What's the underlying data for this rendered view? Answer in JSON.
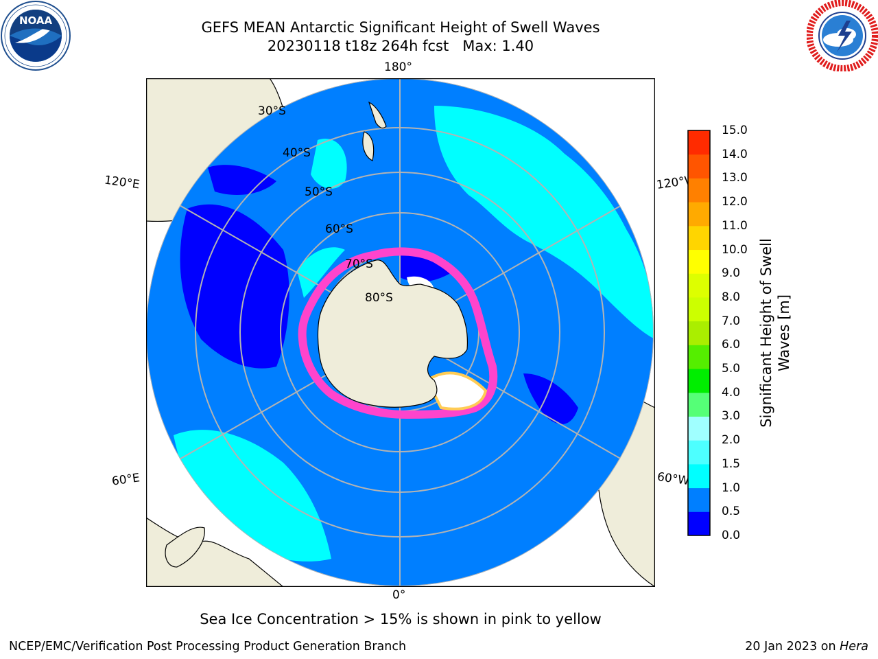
{
  "header": {
    "title_line1": "GEFS MEAN Antarctic Significant Height of Swell Waves",
    "title_line2": "20230118 t18z 264h fcst   Max: 1.40"
  },
  "logos": {
    "left": {
      "icon": "noaa-logo-icon",
      "text": "NOAA",
      "ring_text": "NATIONAL OCEANIC AND ATMOSPHERIC ADMINISTRATION · U.S. DEPARTMENT OF COMMERCE"
    },
    "right": {
      "icon": "nws-logo-icon",
      "ring_text": "NATIONAL WEATHER SERVICE"
    }
  },
  "map": {
    "projection": "south-polar-stereographic",
    "longitude_labels": {
      "top": "180°",
      "bottom": "0°",
      "left_upper": "120°E",
      "left_lower": "60°E",
      "right_upper": "120°W",
      "right_lower": "60°W"
    },
    "latitude_labels": [
      "30°S",
      "40°S",
      "50°S",
      "60°S",
      "70°S",
      "80°S"
    ],
    "colors": {
      "land": "#efedda",
      "ocean_low": "#0000ff",
      "ocean_mid": "#007fff",
      "ocean_high": "#00ffff",
      "gridline": "#b3b3b3",
      "sea_ice": "#ff44cc"
    }
  },
  "colorbar": {
    "title_line1": "Significant Height of Swell",
    "title_line2": "Waves [m]",
    "ticks": [
      "15.0",
      "14.0",
      "13.0",
      "12.0",
      "11.0",
      "10.0",
      "9.0",
      "8.0",
      "7.0",
      "6.0",
      "5.0",
      "4.0",
      "3.0",
      "2.0",
      "1.5",
      "1.0",
      "0.5",
      "0.0"
    ],
    "levels_bottom_to_top": [
      0.0,
      0.5,
      1.0,
      1.5,
      2.0,
      3.0,
      4.0,
      5.0,
      6.0,
      7.0,
      8.0,
      9.0,
      10.0,
      11.0,
      12.0,
      13.0,
      14.0,
      15.0
    ],
    "colors_bottom_to_top": [
      "#0000ff",
      "#007fff",
      "#00ffff",
      "#4dffff",
      "#a0ffff",
      "#55ff77",
      "#00ee00",
      "#55ee00",
      "#aaee00",
      "#ccff00",
      "#ddff00",
      "#ffff00",
      "#ffd500",
      "#ffaa00",
      "#ff8000",
      "#ff5500",
      "#ff2b00",
      "#ff0000"
    ]
  },
  "caption": "Sea Ice Concentration > 15% is shown in pink to yellow",
  "footer": {
    "left": "NCEP/EMC/Verification Post Processing Product Generation Branch",
    "right_prefix": "20 Jan 2023 on ",
    "right_host": "Hera"
  }
}
